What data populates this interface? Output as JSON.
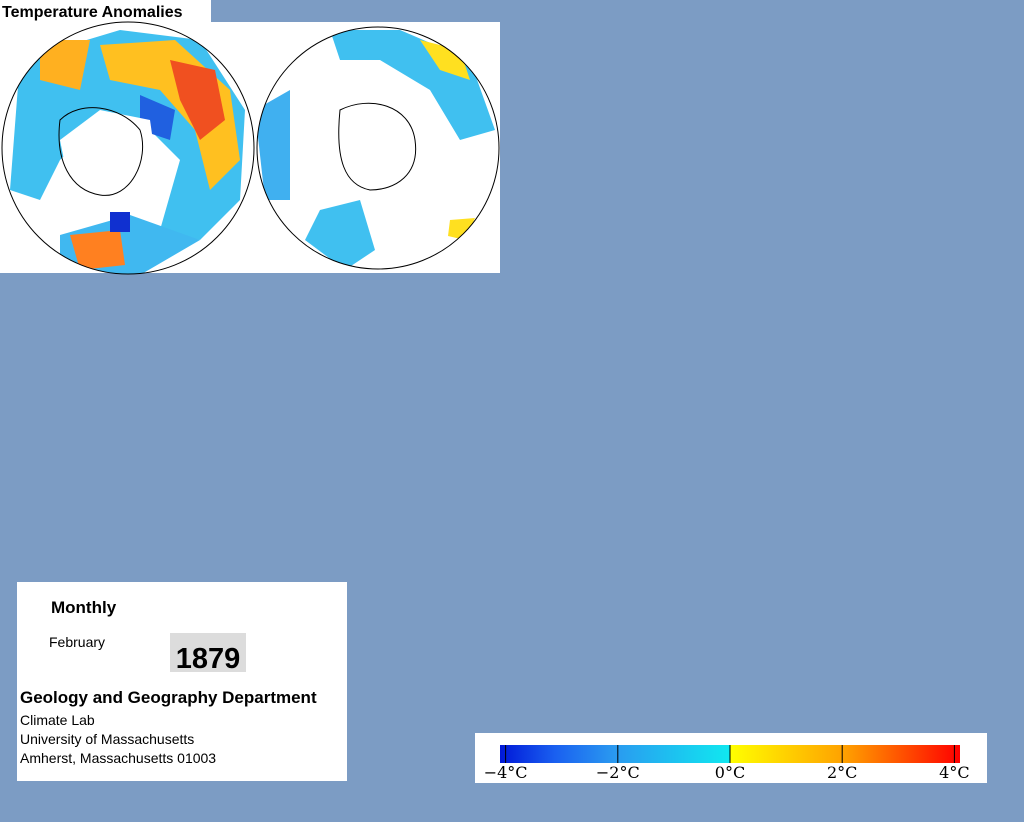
{
  "title": "Temperature Anomalies",
  "info": {
    "period": "Monthly",
    "month": "February",
    "year": "1879",
    "department": "Geology and Geography Department",
    "lines": [
      "Climate Lab",
      "University of Massachusetts",
      "Amherst, Massachusetts 01003"
    ]
  },
  "colorbar": {
    "lim": [
      -4.1,
      4.1
    ],
    "ticks": [
      {
        "value": -4,
        "label": "−4°C"
      },
      {
        "value": -2,
        "label": "−2°C"
      },
      {
        "value": 0,
        "label": "0°C"
      },
      {
        "value": 2,
        "label": "2°C"
      },
      {
        "value": 4,
        "label": "4°C"
      }
    ]
  }
}
